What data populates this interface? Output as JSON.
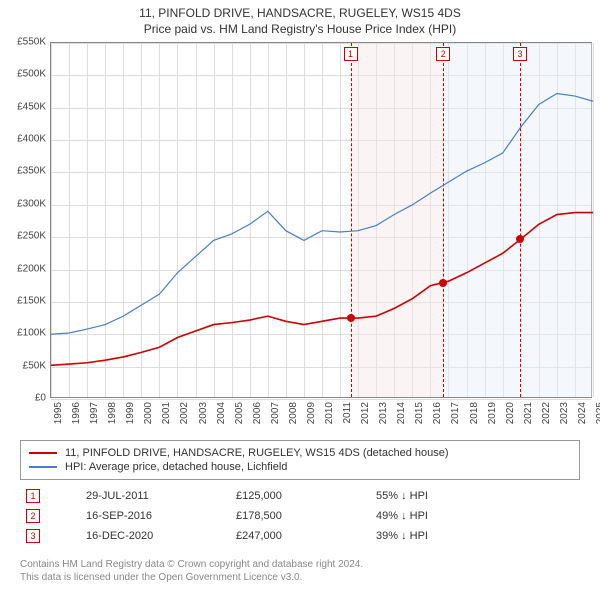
{
  "title": "11, PINFOLD DRIVE, HANDSACRE, RUGELEY, WS15 4DS",
  "subtitle": "Price paid vs. HM Land Registry's House Price Index (HPI)",
  "chart": {
    "type": "line",
    "background_color": "#ffffff",
    "grid_color": "#dddddd",
    "axis_color": "#888888",
    "ylim": [
      0,
      550000
    ],
    "ytick_step": 50000,
    "yticks": [
      "£0",
      "£50K",
      "£100K",
      "£150K",
      "£200K",
      "£250K",
      "£300K",
      "£350K",
      "£400K",
      "£450K",
      "£500K",
      "£550K"
    ],
    "xyears": [
      1995,
      1996,
      1997,
      1998,
      1999,
      2000,
      2001,
      2002,
      2003,
      2004,
      2005,
      2006,
      2007,
      2008,
      2009,
      2010,
      2011,
      2012,
      2013,
      2014,
      2015,
      2016,
      2017,
      2018,
      2019,
      2020,
      2021,
      2022,
      2023,
      2024,
      2025
    ],
    "series": [
      {
        "name": "11, PINFOLD DRIVE, HANDSACRE, RUGELEY, WS15 4DS (detached house)",
        "color": "#cc0000",
        "line_width": 1.6,
        "data": [
          [
            1995,
            52000
          ],
          [
            1996,
            54000
          ],
          [
            1997,
            56000
          ],
          [
            1998,
            60000
          ],
          [
            1999,
            65000
          ],
          [
            2000,
            72000
          ],
          [
            2001,
            80000
          ],
          [
            2002,
            95000
          ],
          [
            2003,
            105000
          ],
          [
            2004,
            115000
          ],
          [
            2005,
            118000
          ],
          [
            2006,
            122000
          ],
          [
            2007,
            128000
          ],
          [
            2008,
            120000
          ],
          [
            2009,
            115000
          ],
          [
            2010,
            120000
          ],
          [
            2011,
            125000
          ],
          [
            2012,
            125000
          ],
          [
            2013,
            128000
          ],
          [
            2014,
            140000
          ],
          [
            2015,
            155000
          ],
          [
            2016,
            175000
          ],
          [
            2017,
            182000
          ],
          [
            2018,
            195000
          ],
          [
            2019,
            210000
          ],
          [
            2020,
            225000
          ],
          [
            2021,
            247000
          ],
          [
            2022,
            270000
          ],
          [
            2023,
            285000
          ],
          [
            2024,
            288000
          ],
          [
            2025,
            288000
          ]
        ]
      },
      {
        "name": "HPI: Average price, detached house, Lichfield",
        "color": "#4a7ec8",
        "line_width": 1.2,
        "data": [
          [
            1995,
            100000
          ],
          [
            1996,
            102000
          ],
          [
            1997,
            108000
          ],
          [
            1998,
            115000
          ],
          [
            1999,
            128000
          ],
          [
            2000,
            145000
          ],
          [
            2001,
            162000
          ],
          [
            2002,
            195000
          ],
          [
            2003,
            220000
          ],
          [
            2004,
            245000
          ],
          [
            2005,
            255000
          ],
          [
            2006,
            270000
          ],
          [
            2007,
            290000
          ],
          [
            2008,
            260000
          ],
          [
            2009,
            245000
          ],
          [
            2010,
            260000
          ],
          [
            2011,
            258000
          ],
          [
            2012,
            260000
          ],
          [
            2013,
            268000
          ],
          [
            2014,
            285000
          ],
          [
            2015,
            300000
          ],
          [
            2016,
            318000
          ],
          [
            2017,
            335000
          ],
          [
            2018,
            352000
          ],
          [
            2019,
            365000
          ],
          [
            2020,
            380000
          ],
          [
            2021,
            420000
          ],
          [
            2022,
            455000
          ],
          [
            2023,
            472000
          ],
          [
            2024,
            468000
          ],
          [
            2025,
            460000
          ]
        ]
      }
    ],
    "sale_markers": [
      {
        "n": 1,
        "date_frac": 2011.58,
        "price": 125000,
        "color": "#cc0000",
        "band_color": "#f6e7e7"
      },
      {
        "n": 2,
        "date_frac": 2016.71,
        "price": 178500,
        "color": "#cc0000",
        "band_color": "#e7eef6"
      },
      {
        "n": 3,
        "date_frac": 2020.96,
        "price": 247000,
        "color": "#cc0000",
        "band_color": "#e7eef6"
      }
    ]
  },
  "legend": {
    "items": [
      {
        "label": "11, PINFOLD DRIVE, HANDSACRE, RUGELEY, WS15 4DS (detached house)",
        "color": "#cc0000"
      },
      {
        "label": "HPI: Average price, detached house, Lichfield",
        "color": "#4a7ec8"
      }
    ]
  },
  "sales": [
    {
      "n": 1,
      "date": "29-JUL-2011",
      "price": "£125,000",
      "diff": "55% ↓ HPI",
      "color": "#cc0000"
    },
    {
      "n": 2,
      "date": "16-SEP-2016",
      "price": "£178,500",
      "diff": "49% ↓ HPI",
      "color": "#cc0000"
    },
    {
      "n": 3,
      "date": "16-DEC-2020",
      "price": "£247,000",
      "diff": "39% ↓ HPI",
      "color": "#cc0000"
    }
  ],
  "footer": {
    "line1": "Contains HM Land Registry data © Crown copyright and database right 2024.",
    "line2": "This data is licensed under the Open Government Licence v3.0."
  }
}
